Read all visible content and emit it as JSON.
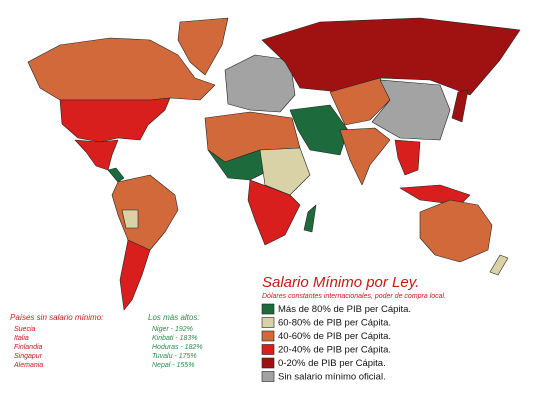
{
  "map": {
    "title": "Salario Mínimo por Ley.",
    "subtitle": "Dólares constantes internacionales, poder de compra local.",
    "legend": [
      {
        "label": "Más de 80% de PIB per Cápita.",
        "color": "#1d6b3c"
      },
      {
        "label": "60-80% de PIB per Cápita.",
        "color": "#d8d2a6"
      },
      {
        "label": "40-60% de PIB per Cápita.",
        "color": "#d2693a"
      },
      {
        "label": "20-40% de PIB per Cápita.",
        "color": "#d91e1e"
      },
      {
        "label": "0-20% de PIB per Cápita.",
        "color": "#a01212"
      },
      {
        "label": "Sin salario mínimo oficial.",
        "color": "#a3a3a3"
      }
    ],
    "no_minimum": {
      "title": "Países sin salario mínimo:",
      "items": [
        "Suecia",
        "Italia",
        "Finlandia",
        "Singapur",
        "Alemania"
      ]
    },
    "highest": {
      "title": "Los más altos:",
      "items": [
        "Niger - 192%",
        "Kiribati - 183%",
        "Hoduras - 182%",
        "Tuvalu - 175%",
        "Nepal - 155%"
      ]
    }
  }
}
